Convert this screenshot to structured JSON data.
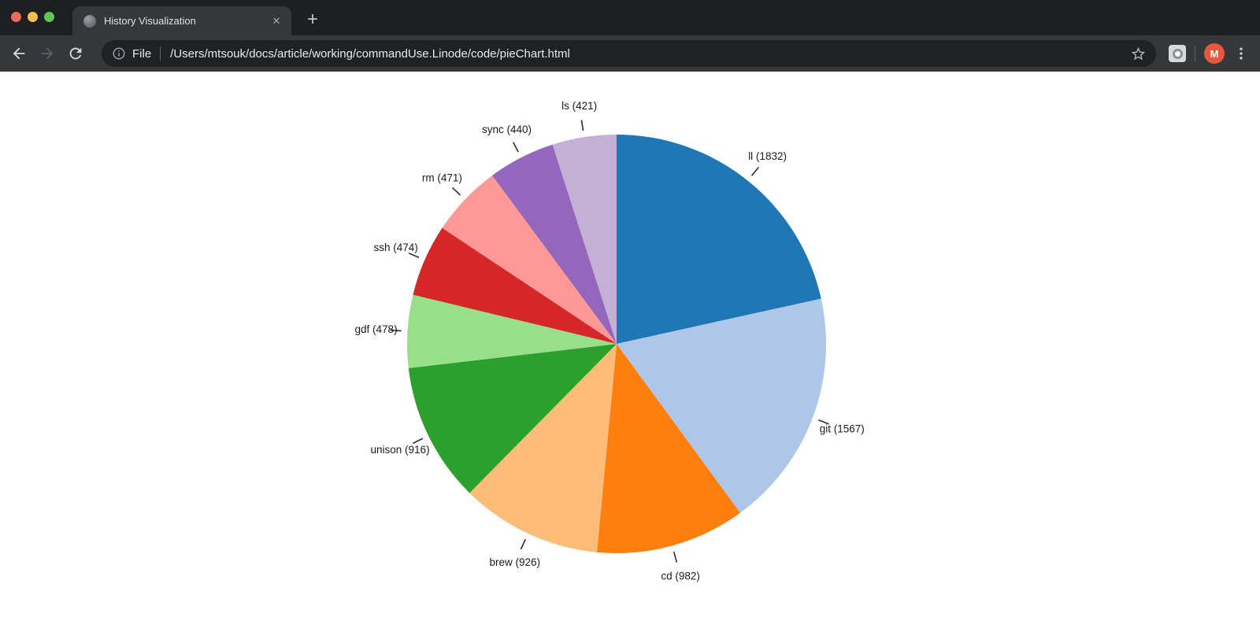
{
  "browser": {
    "window_controls": {
      "close_color": "#ee6a5f",
      "minimize_color": "#f5bf4f",
      "zoom_color": "#62c554"
    },
    "tab": {
      "title": "History Visualization",
      "close_glyph": "✕"
    },
    "new_tab_glyph": "+",
    "omnibox": {
      "scheme_label": "File",
      "url": "/Users/mtsouk/docs/article/working/commandUse.Linode/code/pieChart.html"
    },
    "profile": {
      "initial": "M",
      "color": "#e8583c"
    }
  },
  "chart_data": {
    "type": "pie",
    "title": "",
    "categories": [
      "ll",
      "git",
      "cd",
      "brew",
      "unison",
      "gdf",
      "ssh",
      "rm",
      "sync",
      "ls"
    ],
    "values": [
      1832,
      1567,
      982,
      926,
      916,
      478,
      474,
      471,
      440,
      421
    ],
    "colors": [
      "#1f77b4",
      "#aec7e8",
      "#ff7f0e",
      "#ffbb78",
      "#2ca02c",
      "#98df8a",
      "#d62728",
      "#ff9896",
      "#9467bd",
      "#c5b0d5"
    ],
    "label_format": "{name} ({value})",
    "start_angle_deg": 0,
    "direction": "clockwise",
    "legend": "none",
    "labels_outside_with_ticks": true,
    "label_color": "#1a1a1a",
    "tick_color": "#2b2b2b",
    "background": "#ffffff"
  }
}
